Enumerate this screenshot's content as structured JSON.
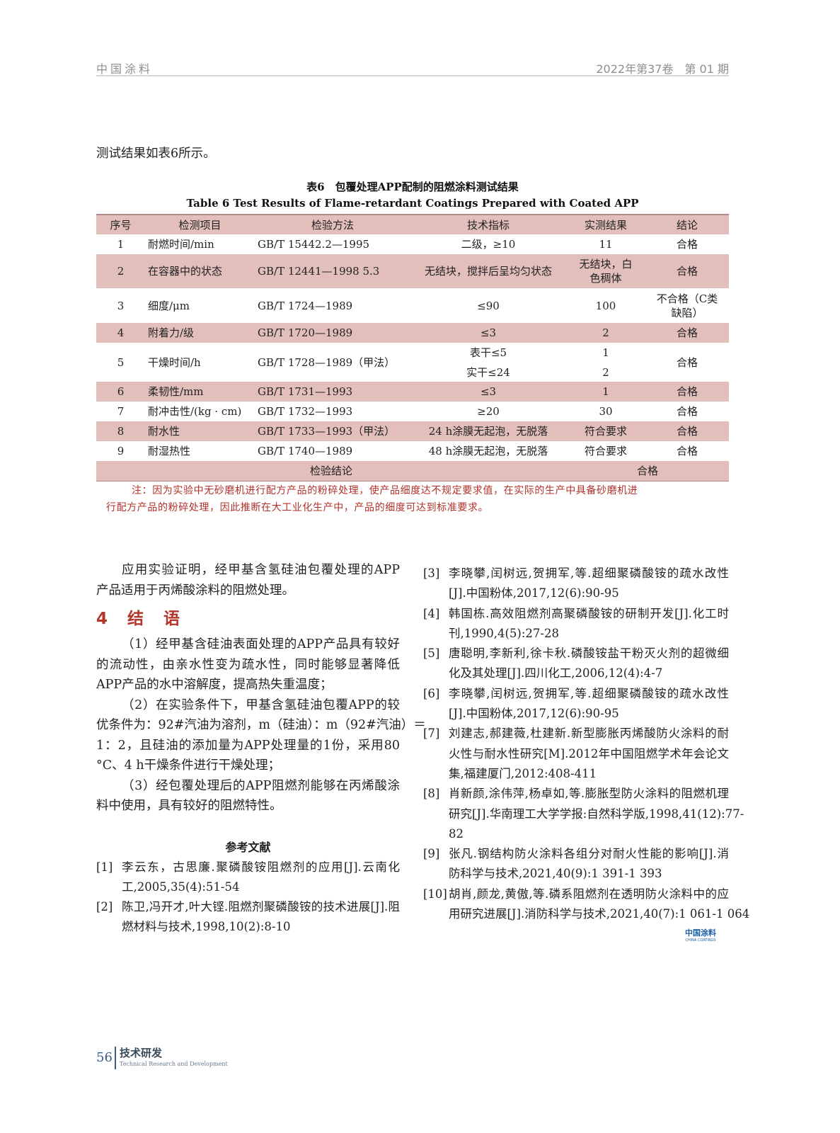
{
  "header": {
    "journal": "中国涂料",
    "issue": "2022年第37卷　第 01 期"
  },
  "intro_text": "测试结果如表6所示。",
  "table": {
    "caption_cn": "表6　包覆处理APP配制的阻燃涂料测试结果",
    "caption_en": "Table 6   Test Results of Flame-retardant Coatings Prepared with Coated APP",
    "headers": [
      "序号",
      "检测项目",
      "检验方法",
      "技术指标",
      "实测结果",
      "结论"
    ],
    "rows": [
      {
        "no": "1",
        "item": "耐燃时间/min",
        "method": "GB/T 15442.2—1995",
        "spec": "二级，≥10",
        "result": "11",
        "verdict": "合格"
      },
      {
        "no": "2",
        "item": "在容器中的状态",
        "method": "GB/T 12441—1998 5.3",
        "spec": "无结块，搅拌后呈均匀状态",
        "result": "无结块，白色稠体",
        "verdict": "合格"
      },
      {
        "no": "3",
        "item": "细度/μm",
        "method": "GB/T 1724—1989",
        "spec": "≤90",
        "result": "100",
        "verdict": "不合格（C类缺陷）"
      },
      {
        "no": "4",
        "item": "附着力/级",
        "method": "GB/T 1720—1989",
        "spec": "≤3",
        "result": "2",
        "verdict": "合格"
      },
      {
        "no": "5",
        "item": "干燥时间/h",
        "method": "GB/T 1728—1989（甲法）",
        "spec": "表干≤5",
        "spec2": "实干≤24",
        "result": "1",
        "result2": "2",
        "verdict": "合格"
      },
      {
        "no": "6",
        "item": "柔韧性/mm",
        "method": "GB/T 1731—1993",
        "spec": "≤3",
        "result": "1",
        "verdict": "合格"
      },
      {
        "no": "7",
        "item": "耐冲击性/(kg · cm)",
        "method": "GB/T 1732—1993",
        "spec": "≥20",
        "result": "30",
        "verdict": "合格"
      },
      {
        "no": "8",
        "item": "耐水性",
        "method": "GB/T 1733—1993（甲法）",
        "spec": "24 h涂膜无起泡，无脱落",
        "result": "符合要求",
        "verdict": "合格"
      },
      {
        "no": "9",
        "item": "耐湿热性",
        "method": "GB/T 1740—1989",
        "spec": "48 h涂膜无起泡，无脱落",
        "result": "符合要求",
        "verdict": "合格"
      }
    ],
    "conclusion_label": "检验结论",
    "conclusion_value": "合格",
    "note_lines": [
      "注：因为实验中无砂磨机进行配方产品的粉碎处理，使产品细度达不规定要求值，在实际的生产中具备砂磨机进",
      "行配方产品的粉碎处理，因此推断在大工业化生产中，产品的细度可达到标准要求。"
    ]
  },
  "left_column": {
    "para_lines": [
      "应用实验证明，经甲基含氢硅油包覆处理的APP",
      "产品适用于丙烯酸涂料的阻燃处理。"
    ],
    "section_title": "4 结 语",
    "items": [
      [
        "（1）经甲基含硅油表面处理的APP产品具有较好",
        "的流动性，由亲水性变为疏水性，同时能够显著降低",
        "APP产品的水中溶解度，提高热失重温度；"
      ],
      [
        "（2）在实验条件下，甲基含氢硅油包覆APP的较",
        "优条件为：92#汽油为溶剂，m（硅油）：m（92#汽油）＝",
        "1：2，且硅油的添加量为APP处理量的1份，采用80",
        "°C、4 h干燥条件进行干燥处理；"
      ],
      [
        "（3）经包覆处理后的APP阻燃剂能够在丙烯酸涂",
        "料中使用，具有较好的阻燃特性。"
      ]
    ],
    "refs_title": "参考文献"
  },
  "references": [
    {
      "num": "[1]",
      "lines": [
        "李云东，古思廉.聚磷酸铵阻燃剂的应用[J].云南化",
        "工,2005,35(4):51-54"
      ]
    },
    {
      "num": "[2]",
      "lines": [
        "陈卫,冯开才,叶大铿.阻燃剂聚磷酸铵的技术进展[J].阻",
        "燃材料与技术,1998,10(2):8-10"
      ]
    },
    {
      "num": "[3]",
      "lines": [
        "李晓攀,闰树远,贺拥军,等.超细聚磷酸铵的疏水改性",
        "[J].中国粉体,2017,12(6):90-95"
      ]
    },
    {
      "num": "[4]",
      "lines": [
        "韩国栋.高效阻燃剂高聚磷酸铵的研制开发[J].化工时",
        "刊,1990,4(5):27-28"
      ]
    },
    {
      "num": "[5]",
      "lines": [
        "唐聪明,李新利,徐卡秋.磷酸铵盐干粉灭火剂的超微细",
        "化及其处理[J].四川化工,2006,12(4):4-7"
      ]
    },
    {
      "num": "[6]",
      "lines": [
        "李晓攀,闰树远,贺拥军,等.超细聚磷酸铵的疏水改性",
        "[J].中国粉体,2017,12(6):90-95"
      ]
    },
    {
      "num": "[7]",
      "lines": [
        "刘建志,郝建薇,杜建新.新型膨胀丙烯酸防火涂料的耐",
        "火性与耐水性研究[M].2012年中国阻燃学术年会论文",
        "集,福建厦门,2012:408-411"
      ]
    },
    {
      "num": "[8]",
      "lines": [
        "肖新颜,涂伟萍,杨卓如,等.膨胀型防火涂料的阻燃机理",
        "研究[J].华南理工大学学报:自然科学版,1998,41(12):77-",
        "82"
      ]
    },
    {
      "num": "[9]",
      "lines": [
        "张凡.钢结构防火涂料各组分对耐火性能的影响[J].消",
        "防科学与技术,2021,40(9):1 391-1 393"
      ]
    },
    {
      "num": "[10]",
      "lines": [
        "胡肖,颜龙,黄傲,等.磷系阻燃剂在透明防火涂料中的应",
        "用研究进展[J].消防科学与技术,2021,40(7):1 061-1 064"
      ]
    }
  ],
  "logo": {
    "cn": "中国涂料",
    "en": "CHINA COATINGS"
  },
  "footer": {
    "page": "56",
    "section_cn": "技术研发",
    "section_en": "Technical Research and Development"
  },
  "colors": {
    "table_stripe": "#e3bfbc",
    "accent_red": "#b5352b",
    "logo_blue": "#1d5fa6"
  }
}
